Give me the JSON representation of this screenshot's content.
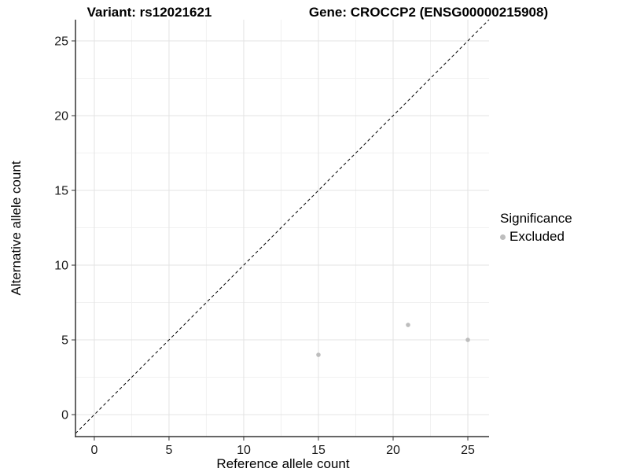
{
  "chart_data": {
    "type": "scatter",
    "titles": {
      "left": "Variant: rs12021621",
      "right": "Gene: CROCCP2 (ENSG00000215908)"
    },
    "xlabel": "Reference allele count",
    "ylabel": "Alternative allele count",
    "xticks": [
      0,
      5,
      10,
      15,
      20,
      25
    ],
    "yticks": [
      0,
      5,
      10,
      15,
      20,
      25
    ],
    "minor_ticks": [
      2.5,
      7.5,
      12.5,
      17.5,
      22.5
    ],
    "xlim": [
      -1.26,
      26.42
    ],
    "ylim": [
      -1.47,
      26.42
    ],
    "grid": true,
    "reference_line": {
      "equation": "y = x",
      "style": "dashed",
      "color": "#000000"
    },
    "series": [
      {
        "name": "Excluded",
        "color": "#bdbdbd",
        "points": [
          {
            "x": 15,
            "y": 4
          },
          {
            "x": 21,
            "y": 6
          },
          {
            "x": 25,
            "y": 5
          }
        ]
      }
    ],
    "legend": {
      "title": "Significance",
      "position": "right",
      "items": [
        {
          "label": "Excluded",
          "color": "#bdbdbd"
        }
      ]
    },
    "colors": {
      "background": "#ffffff",
      "grid_major": "#e3e3e3",
      "grid_minor": "#f1f1f1",
      "axis_line": "#333333",
      "tick_mark": "#333333",
      "tick_label": "#1a1a1a",
      "point": "#bdbdbd"
    },
    "point_radius": 2.8
  }
}
